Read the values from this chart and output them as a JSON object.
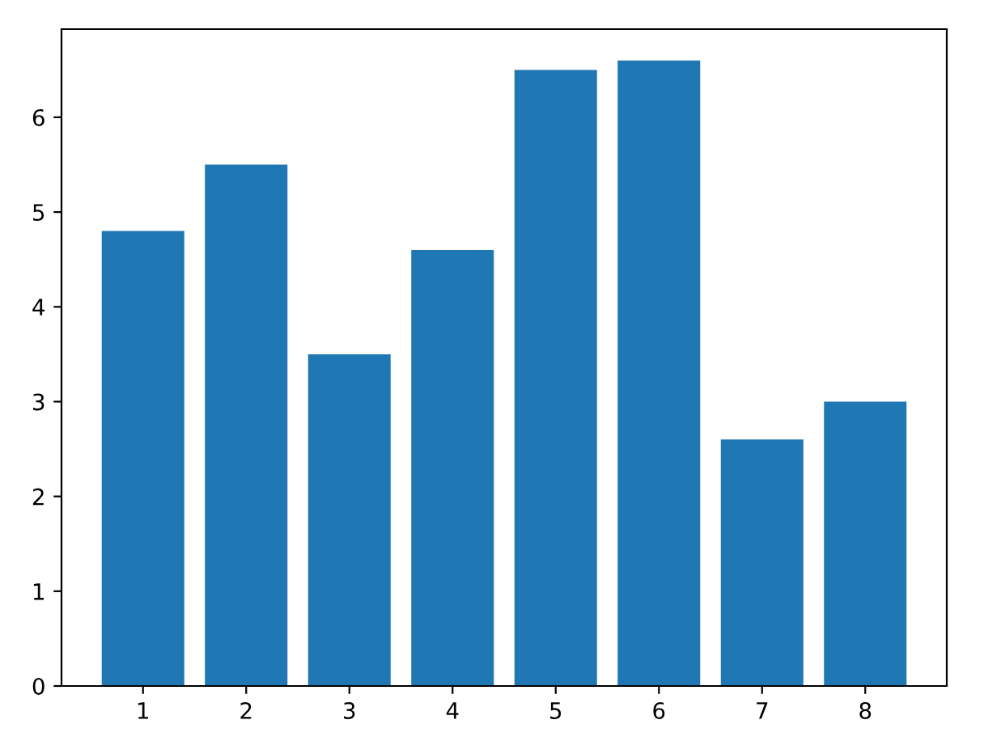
{
  "chart_data": {
    "type": "bar",
    "x": [
      1,
      2,
      3,
      4,
      5,
      6,
      7,
      8
    ],
    "values": [
      4.8,
      5.5,
      3.5,
      4.6,
      6.5,
      6.6,
      2.6,
      3.0
    ],
    "color": "#1f77b4",
    "xlim": [
      0.21,
      8.79
    ],
    "xticks": [
      1,
      2,
      3,
      4,
      5,
      6,
      7,
      8
    ],
    "ylim": [
      0,
      6.93
    ],
    "yticks": [
      0,
      1,
      2,
      3,
      4,
      5,
      6
    ],
    "grid": false
  }
}
